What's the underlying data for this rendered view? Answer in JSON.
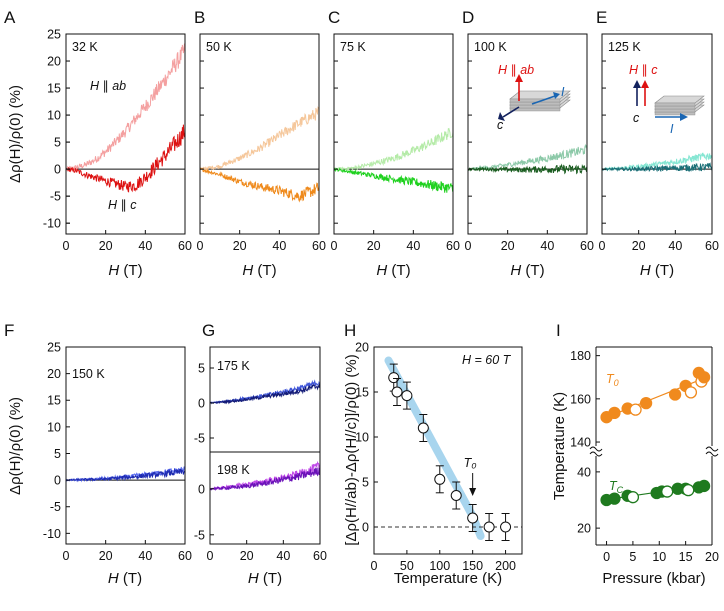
{
  "chart_data": [
    {
      "panel": "A",
      "type": "line",
      "inset_label": "32 K",
      "xlabel": "H (T)",
      "ylabel": "Δρ(H)/ρ(0) (%)",
      "xlim": [
        0,
        60
      ],
      "ylim": [
        -12,
        25
      ],
      "xticks": [
        "0",
        "20",
        "40",
        "60"
      ],
      "yticks": [
        "-10",
        "-5",
        "0",
        "5",
        "10",
        "15",
        "20",
        "25"
      ],
      "annotations": [
        "H ∥ ab",
        "H ∥ c"
      ],
      "series": [
        {
          "name": "H ∥ ab",
          "color": "#f4a0a0",
          "x": [
            0,
            5,
            10,
            15,
            20,
            25,
            30,
            35,
            40,
            45,
            50,
            55,
            60
          ],
          "y": [
            0,
            0.3,
            0.8,
            1.8,
            3.2,
            5.0,
            7.0,
            9.3,
            11.6,
            14.0,
            16.6,
            19.3,
            22.0
          ]
        },
        {
          "name": "H ∥ c",
          "color": "#dd1111",
          "x": [
            0,
            5,
            10,
            15,
            20,
            25,
            30,
            35,
            40,
            45,
            50,
            55,
            60
          ],
          "y": [
            0,
            -0.3,
            -1.0,
            -1.6,
            -2.2,
            -2.7,
            -3.2,
            -3.0,
            -1.5,
            0.5,
            2.5,
            4.7,
            7.0
          ]
        }
      ]
    },
    {
      "panel": "B",
      "type": "line",
      "inset_label": "50 K",
      "xlabel": "H (T)",
      "xlim": [
        0,
        60
      ],
      "ylim": [
        -12,
        25
      ],
      "xticks": [
        "0",
        "20",
        "40",
        "60"
      ],
      "series": [
        {
          "name": "H ∥ ab",
          "color": "#f5c79b",
          "x": [
            0,
            10,
            20,
            30,
            40,
            50,
            60
          ],
          "y": [
            0,
            0.5,
            2.0,
            3.8,
            6.2,
            8.5,
            10.5
          ]
        },
        {
          "name": "H ∥ c",
          "color": "#ef8a1c",
          "x": [
            0,
            10,
            20,
            30,
            40,
            50,
            60
          ],
          "y": [
            0,
            -1.0,
            -2.3,
            -3.2,
            -4.0,
            -5.0,
            -3.5
          ]
        }
      ]
    },
    {
      "panel": "C",
      "type": "line",
      "inset_label": "75 K",
      "xlabel": "H (T)",
      "xlim": [
        0,
        60
      ],
      "ylim": [
        -12,
        25
      ],
      "xticks": [
        "0",
        "20",
        "40",
        "60"
      ],
      "series": [
        {
          "name": "H ∥ ab",
          "color": "#b5eba8",
          "x": [
            0,
            10,
            20,
            30,
            40,
            50,
            60
          ],
          "y": [
            0,
            0.2,
            1.0,
            2.0,
            3.4,
            5.0,
            7.0
          ]
        },
        {
          "name": "H ∥ c",
          "color": "#1fd11f",
          "x": [
            0,
            10,
            20,
            30,
            40,
            50,
            60
          ],
          "y": [
            0,
            -0.6,
            -1.2,
            -1.8,
            -2.4,
            -3.0,
            -3.6
          ]
        }
      ]
    },
    {
      "panel": "D",
      "type": "line",
      "inset_label": "100 K",
      "xlabel": "H (T)",
      "xlim": [
        0,
        60
      ],
      "ylim": [
        -12,
        25
      ],
      "xticks": [
        "0",
        "20",
        "40",
        "60"
      ],
      "annotations": [
        "H ∥ ab",
        "c",
        "I"
      ],
      "series": [
        {
          "name": "H ∥ ab",
          "color": "#8cc9a8",
          "x": [
            0,
            10,
            20,
            30,
            40,
            50,
            60
          ],
          "y": [
            0,
            0.3,
            0.8,
            1.4,
            2.0,
            2.8,
            3.6
          ]
        },
        {
          "name": "H ∥ c",
          "color": "#1a5d20",
          "x": [
            0,
            10,
            20,
            30,
            40,
            50,
            60
          ],
          "y": [
            0,
            0,
            -0.1,
            -0.1,
            0,
            0,
            0
          ]
        }
      ]
    },
    {
      "panel": "E",
      "type": "line",
      "inset_label": "125 K",
      "xlabel": "H (T)",
      "xlim": [
        0,
        60
      ],
      "ylim": [
        -12,
        25
      ],
      "xticks": [
        "0",
        "20",
        "40",
        "60"
      ],
      "annotations": [
        "H ∥ c",
        "c",
        "I"
      ],
      "series": [
        {
          "name": "H ∥ ab",
          "color": "#86e6d3",
          "x": [
            0,
            10,
            20,
            30,
            40,
            50,
            60
          ],
          "y": [
            0,
            0.2,
            0.5,
            0.9,
            1.4,
            2.0,
            2.6
          ]
        },
        {
          "name": "H ∥ c",
          "color": "#1b6f77",
          "x": [
            0,
            10,
            20,
            30,
            40,
            50,
            60
          ],
          "y": [
            0,
            0,
            0,
            0.1,
            0.2,
            0.3,
            0.4
          ]
        }
      ]
    },
    {
      "panel": "F",
      "type": "line",
      "inset_label": "150 K",
      "xlabel": "H (T)",
      "ylabel": "Δρ(H)/ρ(0) (%)",
      "xlim": [
        0,
        60
      ],
      "ylim": [
        -12,
        25
      ],
      "xticks": [
        "0",
        "20",
        "40",
        "60"
      ],
      "yticks": [
        "-10",
        "-5",
        "0",
        "5",
        "10",
        "15",
        "20",
        "25"
      ],
      "series": [
        {
          "name": "H ∥ ab",
          "color": "#5a6cf0",
          "x": [
            0,
            10,
            20,
            30,
            40,
            50,
            60
          ],
          "y": [
            0,
            0.1,
            0.3,
            0.6,
            1.0,
            1.5,
            2.0
          ]
        },
        {
          "name": "H ∥ c",
          "color": "#1e2bb0",
          "x": [
            0,
            10,
            20,
            30,
            40,
            50,
            60
          ],
          "y": [
            0,
            0.1,
            0.2,
            0.5,
            0.8,
            1.2,
            1.6
          ]
        }
      ]
    },
    {
      "panel": "G-top",
      "type": "line",
      "inset_label": "175 K",
      "xlim": [
        0,
        60
      ],
      "ylim": [
        -7,
        8
      ],
      "yticks": [
        "-5",
        "0",
        "5"
      ],
      "series": [
        {
          "name": "H ∥ ab",
          "color": "#3f55d8",
          "x": [
            0,
            10,
            20,
            30,
            40,
            50,
            60
          ],
          "y": [
            0,
            0.3,
            0.7,
            1.1,
            1.6,
            2.2,
            3.0
          ]
        },
        {
          "name": "H ∥ c",
          "color": "#141c78",
          "x": [
            0,
            10,
            20,
            30,
            40,
            50,
            60
          ],
          "y": [
            0,
            0.2,
            0.5,
            0.9,
            1.3,
            1.8,
            2.5
          ]
        }
      ]
    },
    {
      "panel": "G-bottom",
      "type": "line",
      "inset_label": "198 K",
      "xlabel": "H (T)",
      "xlim": [
        0,
        60
      ],
      "ylim": [
        -6,
        4
      ],
      "xticks": [
        "0",
        "20",
        "40",
        "60"
      ],
      "yticks": [
        "-5",
        "0"
      ],
      "series": [
        {
          "name": "H ∥ ab",
          "color": "#c04ae8",
          "x": [
            0,
            10,
            20,
            30,
            40,
            50,
            60
          ],
          "y": [
            0,
            0.2,
            0.5,
            0.8,
            1.2,
            1.7,
            2.5
          ]
        },
        {
          "name": "H ∥ c",
          "color": "#6a12b8",
          "x": [
            0,
            10,
            20,
            30,
            40,
            50,
            60
          ],
          "y": [
            0,
            0.1,
            0.3,
            0.6,
            1.0,
            1.4,
            2.0
          ]
        }
      ]
    },
    {
      "panel": "H",
      "type": "scatter",
      "inset_label": "H = 60 T",
      "xlabel": "Temperature (K)",
      "ylabel": "[Δρ(H//ab)-Δρ(H//c)]/ρ(0) (%)",
      "xlim": [
        0,
        225
      ],
      "ylim": [
        -3,
        20
      ],
      "xticks": [
        "0",
        "50",
        "100",
        "150",
        "200"
      ],
      "yticks": [
        "0",
        "5",
        "10",
        "15",
        "20"
      ],
      "annotations": [
        "T₀"
      ],
      "points": [
        {
          "x": 30,
          "y": 16.6,
          "err": 1.5
        },
        {
          "x": 35,
          "y": 15.0,
          "err": 1.5
        },
        {
          "x": 50,
          "y": 14.6,
          "err": 1.5
        },
        {
          "x": 75,
          "y": 11.0,
          "err": 1.5
        },
        {
          "x": 100,
          "y": 5.3,
          "err": 1.5
        },
        {
          "x": 125,
          "y": 3.5,
          "err": 1.5
        },
        {
          "x": 150,
          "y": 1.0,
          "err": 1.5
        },
        {
          "x": 175,
          "y": 0.0,
          "err": 1.5
        },
        {
          "x": 200,
          "y": 0.0,
          "err": 1.5
        }
      ],
      "trend": {
        "x": [
          22,
          150,
          162
        ],
        "y": [
          18.5,
          1.2,
          -1.0
        ],
        "color": "#9ed0ec"
      },
      "arrow_x": 150
    },
    {
      "panel": "I",
      "type": "scatter",
      "xlabel": "Pressure (kbar)",
      "ylabel": "Temperature (K)",
      "xlim": [
        -2,
        20
      ],
      "xticks": [
        "0",
        "5",
        "10",
        "15",
        "20"
      ],
      "yticks_upper": [
        "140",
        "160",
        "180"
      ],
      "yticks_lower": [
        "20",
        "40"
      ],
      "upper_ylim": [
        134,
        184
      ],
      "lower_ylim": [
        14,
        46
      ],
      "series": [
        {
          "name": "T₀",
          "color": "#f08a1e",
          "points": [
            {
              "x": 0,
              "y": 151.5,
              "fill": "full"
            },
            {
              "x": 1.5,
              "y": 153.5,
              "fill": "full"
            },
            {
              "x": 4.0,
              "y": 155.5,
              "fill": "full"
            },
            {
              "x": 5.5,
              "y": 155.0,
              "fill": "open"
            },
            {
              "x": 7.5,
              "y": 158.0,
              "fill": "full"
            },
            {
              "x": 13.0,
              "y": 162.0,
              "fill": "full"
            },
            {
              "x": 15.0,
              "y": 166.0,
              "fill": "full"
            },
            {
              "x": 16.0,
              "y": 163.0,
              "fill": "open"
            },
            {
              "x": 17.5,
              "y": 172.0,
              "fill": "full"
            },
            {
              "x": 18.0,
              "y": 168.0,
              "fill": "open"
            },
            {
              "x": 18.5,
              "y": 170.0,
              "fill": "full"
            }
          ],
          "fit": {
            "x": [
              -0.5,
              19.5
            ],
            "y": [
              151.0,
              170.5
            ]
          }
        },
        {
          "name": "Tc",
          "color": "#1f7a1f",
          "points": [
            {
              "x": 0,
              "y": 30.0,
              "fill": "full"
            },
            {
              "x": 1.5,
              "y": 30.5,
              "fill": "full"
            },
            {
              "x": 4.0,
              "y": 31.5,
              "fill": "full"
            },
            {
              "x": 5.0,
              "y": 31.0,
              "fill": "open"
            },
            {
              "x": 9.5,
              "y": 32.5,
              "fill": "full"
            },
            {
              "x": 10.5,
              "y": 33.0,
              "fill": "full"
            },
            {
              "x": 11.5,
              "y": 33.0,
              "fill": "open"
            },
            {
              "x": 13.5,
              "y": 34.0,
              "fill": "full"
            },
            {
              "x": 15.0,
              "y": 34.0,
              "fill": "full"
            },
            {
              "x": 15.5,
              "y": 33.5,
              "fill": "open"
            },
            {
              "x": 17.5,
              "y": 34.5,
              "fill": "full"
            },
            {
              "x": 18.5,
              "y": 35.0,
              "fill": "full"
            }
          ],
          "fit": {
            "x": [
              -0.5,
              19.5
            ],
            "y": [
              30.0,
              35.5
            ]
          }
        }
      ]
    }
  ]
}
